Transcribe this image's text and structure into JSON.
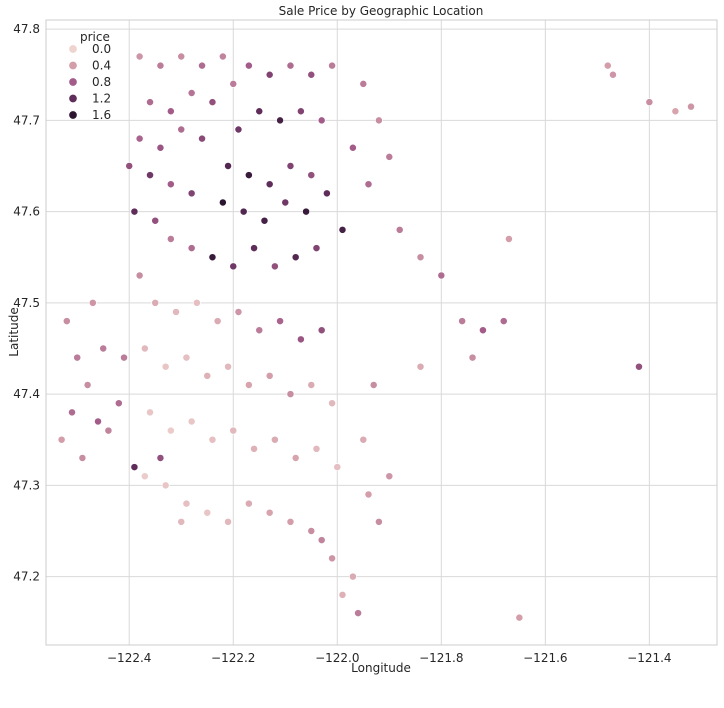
{
  "chart_data": {
    "type": "scatter",
    "title": "Sale Price by Geographic Location",
    "xlabel": "Longitude",
    "ylabel": "Latitude",
    "xlim": [
      -122.56,
      -121.27
    ],
    "ylim": [
      47.125,
      47.81
    ],
    "xticks": [
      -122.4,
      -122.2,
      -122.0,
      -121.8,
      -121.6,
      -121.4
    ],
    "xtick_labels": [
      "−122.4",
      "−122.2",
      "−122.0",
      "−121.8",
      "−121.6",
      "−121.4"
    ],
    "yticks": [
      47.2,
      47.3,
      47.4,
      47.5,
      47.6,
      47.7,
      47.8
    ],
    "ytick_labels": [
      "47.2",
      "47.3",
      "47.4",
      "47.5",
      "47.6",
      "47.7",
      "47.8"
    ],
    "grid": true,
    "legend": {
      "title": "price",
      "placement": "top-left",
      "entries": [
        {
          "label": "0.0",
          "value": 0.0,
          "color": "#efd3cf"
        },
        {
          "label": "0.4",
          "value": 0.4,
          "color": "#d39da9"
        },
        {
          "label": "0.8",
          "value": 0.8,
          "color": "#a35b89"
        },
        {
          "label": "1.2",
          "value": 1.2,
          "color": "#5f2d5a"
        },
        {
          "label": "1.6",
          "value": 1.6,
          "color": "#2b1530"
        }
      ]
    },
    "price_range": [
      0.0,
      1.6
    ],
    "points": [
      [
        -122.38,
        47.77,
        0.45
      ],
      [
        -122.34,
        47.76,
        0.6
      ],
      [
        -122.3,
        47.77,
        0.5
      ],
      [
        -122.26,
        47.76,
        0.7
      ],
      [
        -122.22,
        47.77,
        0.55
      ],
      [
        -122.36,
        47.72,
        0.7
      ],
      [
        -122.32,
        47.71,
        0.8
      ],
      [
        -122.28,
        47.73,
        0.65
      ],
      [
        -122.24,
        47.72,
        0.9
      ],
      [
        -122.2,
        47.74,
        0.6
      ],
      [
        -122.38,
        47.68,
        0.75
      ],
      [
        -122.34,
        47.67,
        0.85
      ],
      [
        -122.3,
        47.69,
        0.7
      ],
      [
        -122.26,
        47.68,
        0.95
      ],
      [
        -122.4,
        47.65,
        0.9
      ],
      [
        -122.36,
        47.64,
        1.1
      ],
      [
        -122.32,
        47.63,
        0.8
      ],
      [
        -122.28,
        47.62,
        1.0
      ],
      [
        -122.39,
        47.6,
        1.2
      ],
      [
        -122.35,
        47.59,
        0.9
      ],
      [
        -122.17,
        47.76,
        0.8
      ],
      [
        -122.13,
        47.75,
        1.0
      ],
      [
        -122.09,
        47.76,
        0.7
      ],
      [
        -122.05,
        47.75,
        0.9
      ],
      [
        -122.01,
        47.76,
        0.6
      ],
      [
        -122.15,
        47.71,
        1.2
      ],
      [
        -122.11,
        47.7,
        1.4
      ],
      [
        -122.07,
        47.71,
        1.0
      ],
      [
        -122.03,
        47.7,
        0.8
      ],
      [
        -122.19,
        47.69,
        1.1
      ],
      [
        -122.21,
        47.65,
        1.3
      ],
      [
        -122.17,
        47.64,
        1.5
      ],
      [
        -122.13,
        47.63,
        1.2
      ],
      [
        -122.09,
        47.65,
        1.0
      ],
      [
        -122.05,
        47.64,
        0.9
      ],
      [
        -122.22,
        47.61,
        1.6
      ],
      [
        -122.18,
        47.6,
        1.3
      ],
      [
        -122.14,
        47.59,
        1.4
      ],
      [
        -122.1,
        47.61,
        1.1
      ],
      [
        -122.06,
        47.6,
        1.5
      ],
      [
        -122.02,
        47.62,
        1.2
      ],
      [
        -121.99,
        47.58,
        1.4
      ],
      [
        -122.04,
        47.56,
        1.0
      ],
      [
        -122.08,
        47.55,
        1.3
      ],
      [
        -122.12,
        47.54,
        0.9
      ],
      [
        -122.16,
        47.56,
        1.2
      ],
      [
        -122.2,
        47.54,
        1.1
      ],
      [
        -122.24,
        47.55,
        1.5
      ],
      [
        -122.28,
        47.56,
        0.7
      ],
      [
        -122.32,
        47.57,
        0.6
      ],
      [
        -121.95,
        47.74,
        0.6
      ],
      [
        -121.92,
        47.7,
        0.5
      ],
      [
        -121.9,
        47.66,
        0.6
      ],
      [
        -121.94,
        47.63,
        0.7
      ],
      [
        -121.97,
        47.67,
        0.8
      ],
      [
        -121.88,
        47.58,
        0.6
      ],
      [
        -121.84,
        47.55,
        0.5
      ],
      [
        -121.8,
        47.53,
        0.7
      ],
      [
        -121.76,
        47.48,
        0.6
      ],
      [
        -121.72,
        47.47,
        0.8
      ],
      [
        -121.74,
        47.44,
        0.5
      ],
      [
        -121.68,
        47.48,
        0.7
      ],
      [
        -121.67,
        47.57,
        0.4
      ],
      [
        -121.84,
        47.43,
        0.3
      ],
      [
        -121.42,
        47.43,
        0.9
      ],
      [
        -121.48,
        47.76,
        0.4
      ],
      [
        -121.47,
        47.75,
        0.45
      ],
      [
        -121.4,
        47.72,
        0.5
      ],
      [
        -121.35,
        47.71,
        0.35
      ],
      [
        -121.32,
        47.715,
        0.45
      ],
      [
        -121.65,
        47.155,
        0.4
      ],
      [
        -122.38,
        47.53,
        0.5
      ],
      [
        -122.35,
        47.5,
        0.3
      ],
      [
        -122.31,
        47.49,
        0.2
      ],
      [
        -122.27,
        47.5,
        0.15
      ],
      [
        -122.23,
        47.48,
        0.3
      ],
      [
        -122.19,
        47.49,
        0.45
      ],
      [
        -122.15,
        47.47,
        0.6
      ],
      [
        -122.11,
        47.48,
        0.75
      ],
      [
        -122.07,
        47.46,
        0.85
      ],
      [
        -122.03,
        47.47,
        0.9
      ],
      [
        -122.37,
        47.45,
        0.2
      ],
      [
        -122.33,
        47.43,
        0.1
      ],
      [
        -122.29,
        47.44,
        0.15
      ],
      [
        -122.25,
        47.42,
        0.25
      ],
      [
        -122.21,
        47.43,
        0.2
      ],
      [
        -122.17,
        47.41,
        0.35
      ],
      [
        -122.13,
        47.42,
        0.4
      ],
      [
        -122.09,
        47.4,
        0.5
      ],
      [
        -122.05,
        47.41,
        0.3
      ],
      [
        -122.01,
        47.39,
        0.2
      ],
      [
        -122.36,
        47.38,
        0.1
      ],
      [
        -122.32,
        47.36,
        0.05
      ],
      [
        -122.28,
        47.37,
        0.1
      ],
      [
        -122.24,
        47.35,
        0.15
      ],
      [
        -122.2,
        47.36,
        0.2
      ],
      [
        -122.16,
        47.34,
        0.25
      ],
      [
        -122.12,
        47.35,
        0.3
      ],
      [
        -122.08,
        47.33,
        0.35
      ],
      [
        -122.04,
        47.34,
        0.2
      ],
      [
        -122.0,
        47.32,
        0.15
      ],
      [
        -122.37,
        47.31,
        0.05
      ],
      [
        -122.33,
        47.3,
        0.1
      ],
      [
        -122.29,
        47.28,
        0.15
      ],
      [
        -122.25,
        47.27,
        0.1
      ],
      [
        -122.21,
        47.26,
        0.2
      ],
      [
        -122.17,
        47.28,
        0.3
      ],
      [
        -122.13,
        47.27,
        0.35
      ],
      [
        -122.09,
        47.26,
        0.4
      ],
      [
        -122.05,
        47.25,
        0.5
      ],
      [
        -122.01,
        47.22,
        0.45
      ],
      [
        -121.97,
        47.2,
        0.3
      ],
      [
        -121.99,
        47.18,
        0.25
      ],
      [
        -121.96,
        47.16,
        0.6
      ],
      [
        -122.03,
        47.24,
        0.55
      ],
      [
        -121.94,
        47.29,
        0.4
      ],
      [
        -121.92,
        47.26,
        0.5
      ],
      [
        -121.9,
        47.31,
        0.45
      ],
      [
        -121.95,
        47.35,
        0.3
      ],
      [
        -121.93,
        47.41,
        0.5
      ],
      [
        -122.52,
        47.48,
        0.5
      ],
      [
        -122.5,
        47.44,
        0.6
      ],
      [
        -122.48,
        47.41,
        0.5
      ],
      [
        -122.51,
        47.38,
        0.7
      ],
      [
        -122.46,
        47.37,
        0.8
      ],
      [
        -122.53,
        47.35,
        0.4
      ],
      [
        -122.49,
        47.33,
        0.5
      ],
      [
        -122.45,
        47.45,
        0.6
      ],
      [
        -122.47,
        47.5,
        0.45
      ],
      [
        -122.42,
        47.39,
        0.7
      ],
      [
        -122.41,
        47.44,
        0.6
      ],
      [
        -122.44,
        47.36,
        0.55
      ],
      [
        -122.39,
        47.32,
        1.2
      ],
      [
        -122.34,
        47.33,
        0.9
      ],
      [
        -122.3,
        47.26,
        0.2
      ]
    ]
  }
}
